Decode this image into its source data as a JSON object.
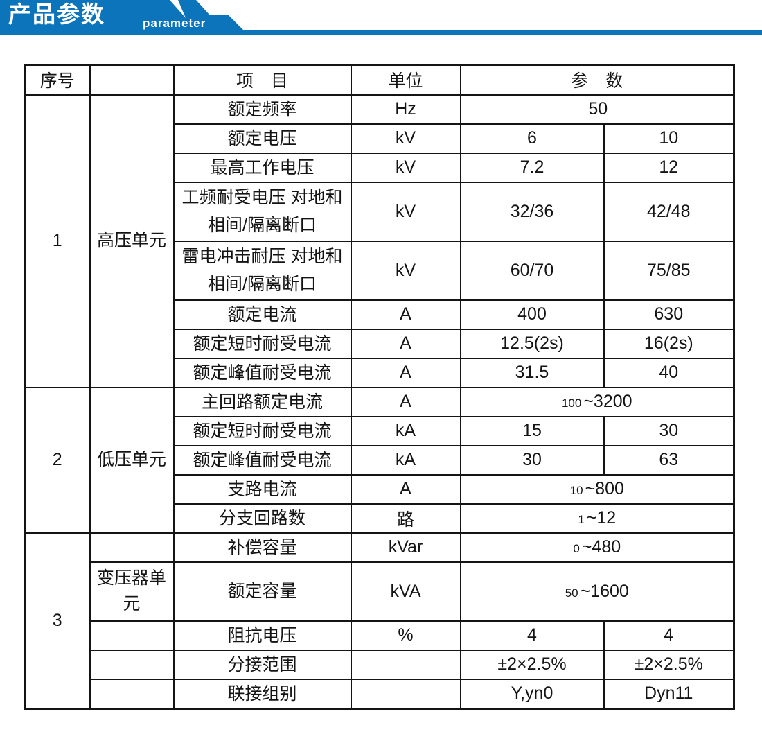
{
  "banner": {
    "title": "产品参数",
    "subtitle": "parameter",
    "accent_color": "#0b74ba"
  },
  "table": {
    "headers": {
      "no": "序号",
      "category": "",
      "item": "项　目",
      "unit": "单位",
      "param": "参　数"
    },
    "sections": [
      {
        "no": "1",
        "category": "高压单元",
        "rows": [
          {
            "item_lines": [
              "额定频率"
            ],
            "unit": "Hz",
            "values": {
              "type": "merged",
              "small": "",
              "main": "50"
            }
          },
          {
            "item_lines": [
              "额定电压"
            ],
            "unit": "kV",
            "values": {
              "type": "split",
              "v1": "6",
              "v2": "10"
            }
          },
          {
            "item_lines": [
              "最高工作电压"
            ],
            "unit": "kV",
            "values": {
              "type": "split",
              "v1": "7.2",
              "v2": "12"
            }
          },
          {
            "item_lines": [
              "工频耐受电压 对地和",
              "相间/隔离断口"
            ],
            "unit": "kV",
            "tall": true,
            "values": {
              "type": "split",
              "v1": "32/36",
              "v2": "42/48"
            }
          },
          {
            "item_lines": [
              "雷电冲击耐压 对地和",
              "相间/隔离断口"
            ],
            "unit": "kV",
            "tall": true,
            "values": {
              "type": "split",
              "v1": "60/70",
              "v2": "75/85"
            }
          },
          {
            "item_lines": [
              "额定电流"
            ],
            "unit": "A",
            "values": {
              "type": "split",
              "v1": "400",
              "v2": "630"
            }
          },
          {
            "item_lines": [
              "额定短时耐受电流"
            ],
            "unit": "A",
            "values": {
              "type": "split",
              "v1": "12.5(2s)",
              "v2": "16(2s)"
            }
          },
          {
            "item_lines": [
              "额定峰值耐受电流"
            ],
            "unit": "A",
            "values": {
              "type": "split",
              "v1": "31.5",
              "v2": "40"
            }
          }
        ]
      },
      {
        "no": "2",
        "category": "低压单元",
        "rows": [
          {
            "item_lines": [
              "主回路额定电流"
            ],
            "unit": "A",
            "values": {
              "type": "merged",
              "small": "100",
              "main": "~3200"
            }
          },
          {
            "item_lines": [
              "额定短时耐受电流"
            ],
            "unit": "kA",
            "values": {
              "type": "split",
              "v1": "15",
              "v2": "30"
            }
          },
          {
            "item_lines": [
              "额定峰值耐受电流"
            ],
            "unit": "kA",
            "values": {
              "type": "split",
              "v1": "30",
              "v2": "63"
            }
          },
          {
            "item_lines": [
              "支路电流"
            ],
            "unit": "A",
            "values": {
              "type": "merged",
              "small": "10",
              "main": "~800"
            }
          },
          {
            "item_lines": [
              "分支回路数"
            ],
            "unit": "路",
            "values": {
              "type": "merged",
              "small": "1",
              "main": "~12"
            }
          }
        ]
      },
      {
        "no": "3",
        "category_per_row": true,
        "rows": [
          {
            "cat_lines": [],
            "item_lines": [
              "补偿容量"
            ],
            "unit": "kVar",
            "values": {
              "type": "merged",
              "small": "0",
              "main": "~480"
            }
          },
          {
            "cat_lines": [
              "变压器单",
              "元"
            ],
            "item_lines": [
              "额定容量"
            ],
            "unit": "kVA",
            "tall": true,
            "values": {
              "type": "merged",
              "small": "50",
              "main": "~1600"
            }
          },
          {
            "cat_lines": [],
            "item_lines": [
              "阻抗电压"
            ],
            "unit": "%",
            "values": {
              "type": "split",
              "v1": "4",
              "v2": "4"
            }
          },
          {
            "cat_lines": [],
            "item_lines": [
              "分接范围"
            ],
            "unit": "",
            "values": {
              "type": "split",
              "v1": "±2×2.5%",
              "v2": "±2×2.5%"
            }
          },
          {
            "cat_lines": [],
            "item_lines": [
              "联接组别"
            ],
            "unit": "",
            "values": {
              "type": "split",
              "v1": "Y,yn0",
              "v2": "Dyn11"
            }
          }
        ]
      }
    ]
  }
}
